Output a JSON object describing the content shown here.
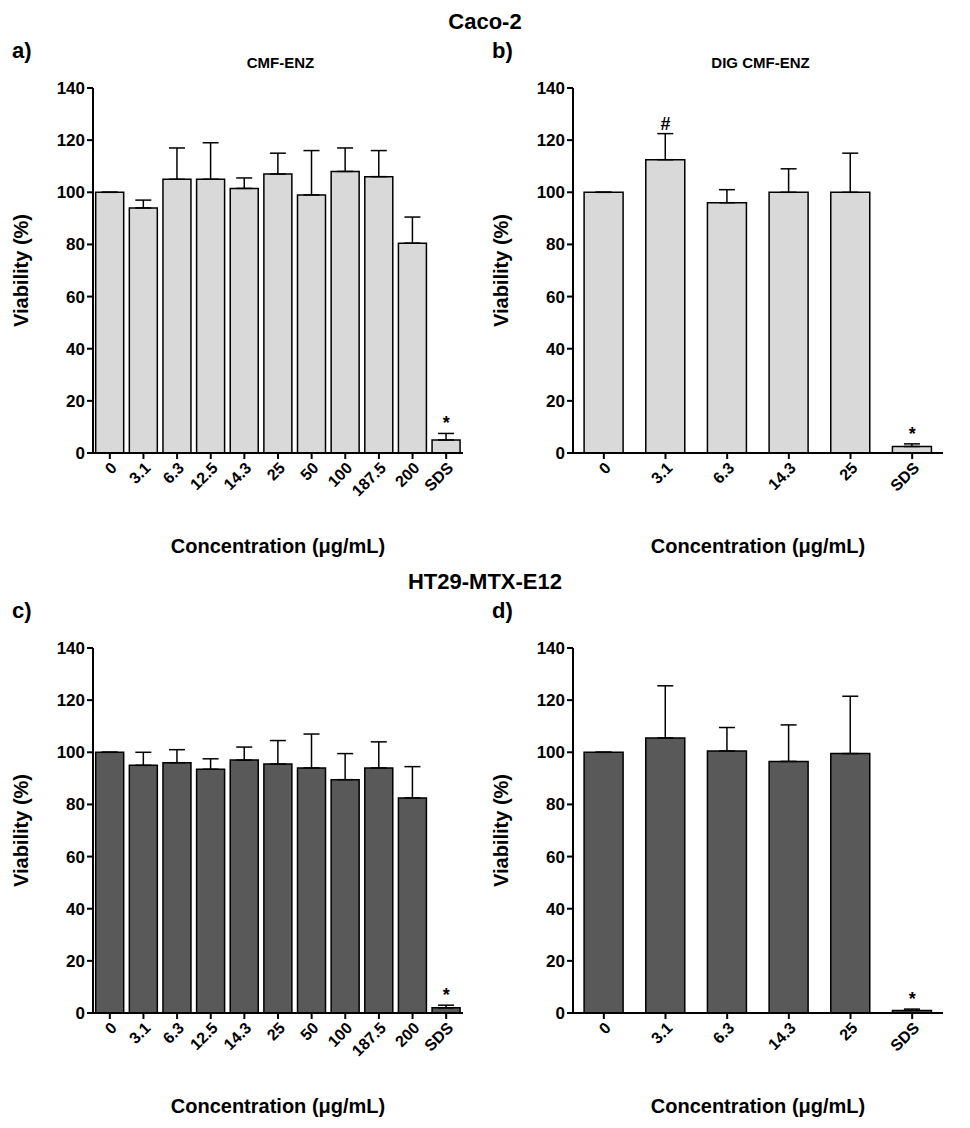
{
  "row_titles": [
    "Caco-2",
    "HT29-MTX-E12"
  ],
  "chart_data": [
    {
      "type": "bar",
      "panel": "a)",
      "title": "CMF-ENZ",
      "categories": [
        "0",
        "3.1",
        "6.3",
        "12.5",
        "14.3",
        "25",
        "50",
        "100",
        "187.5",
        "200",
        "SDS"
      ],
      "values": [
        100,
        94,
        105,
        105,
        101.5,
        107,
        99,
        108,
        106,
        80.5,
        5
      ],
      "errors": [
        0,
        3,
        12,
        14,
        4,
        8,
        17,
        9,
        10,
        10,
        2.5
      ],
      "color": "#d9d9d9",
      "xlabel": "Concentration (μg/mL)",
      "ylabel": "Viability (%)",
      "ylim": [
        0,
        140
      ],
      "yticks": [
        0,
        20,
        40,
        60,
        80,
        100,
        120,
        140
      ],
      "annotations": [
        {
          "category": "SDS",
          "text": "*"
        }
      ]
    },
    {
      "type": "bar",
      "panel": "b)",
      "title": "DIG CMF-ENZ",
      "categories": [
        "0",
        "3.1",
        "6.3",
        "14.3",
        "25",
        "SDS"
      ],
      "values": [
        100,
        112.5,
        96,
        100,
        100,
        2.5
      ],
      "errors": [
        0,
        10,
        5,
        9,
        15,
        1
      ],
      "color": "#d9d9d9",
      "xlabel": "Concentration (μg/mL)",
      "ylabel": "Viability (%)",
      "ylim": [
        0,
        140
      ],
      "yticks": [
        0,
        20,
        40,
        60,
        80,
        100,
        120,
        140
      ],
      "annotations": [
        {
          "category": "3.1",
          "text": "#"
        },
        {
          "category": "SDS",
          "text": "*"
        }
      ]
    },
    {
      "type": "bar",
      "panel": "c)",
      "categories": [
        "0",
        "3.1",
        "6.3",
        "12.5",
        "14.3",
        "25",
        "50",
        "100",
        "187.5",
        "200",
        "SDS"
      ],
      "values": [
        100,
        95,
        96,
        93.5,
        97,
        95.5,
        94,
        89.5,
        94,
        82.5,
        2
      ],
      "errors": [
        0,
        5,
        5,
        4,
        5,
        9,
        13,
        10,
        10,
        12,
        1
      ],
      "color": "#595959",
      "xlabel": "Concentration (μg/mL)",
      "ylabel": "Viability (%)",
      "ylim": [
        0,
        140
      ],
      "yticks": [
        0,
        20,
        40,
        60,
        80,
        100,
        120,
        140
      ],
      "annotations": [
        {
          "category": "SDS",
          "text": "*"
        }
      ]
    },
    {
      "type": "bar",
      "panel": "d)",
      "categories": [
        "0",
        "3.1",
        "6.3",
        "14.3",
        "25",
        "SDS"
      ],
      "values": [
        100,
        105.5,
        100.5,
        96.5,
        99.5,
        1
      ],
      "errors": [
        0,
        20,
        9,
        14,
        22,
        0.5
      ],
      "color": "#595959",
      "xlabel": "Concentration (μg/mL)",
      "ylabel": "Viability (%)",
      "ylim": [
        0,
        140
      ],
      "yticks": [
        0,
        20,
        40,
        60,
        80,
        100,
        120,
        140
      ],
      "annotations": [
        {
          "category": "SDS",
          "text": "*"
        }
      ]
    }
  ]
}
